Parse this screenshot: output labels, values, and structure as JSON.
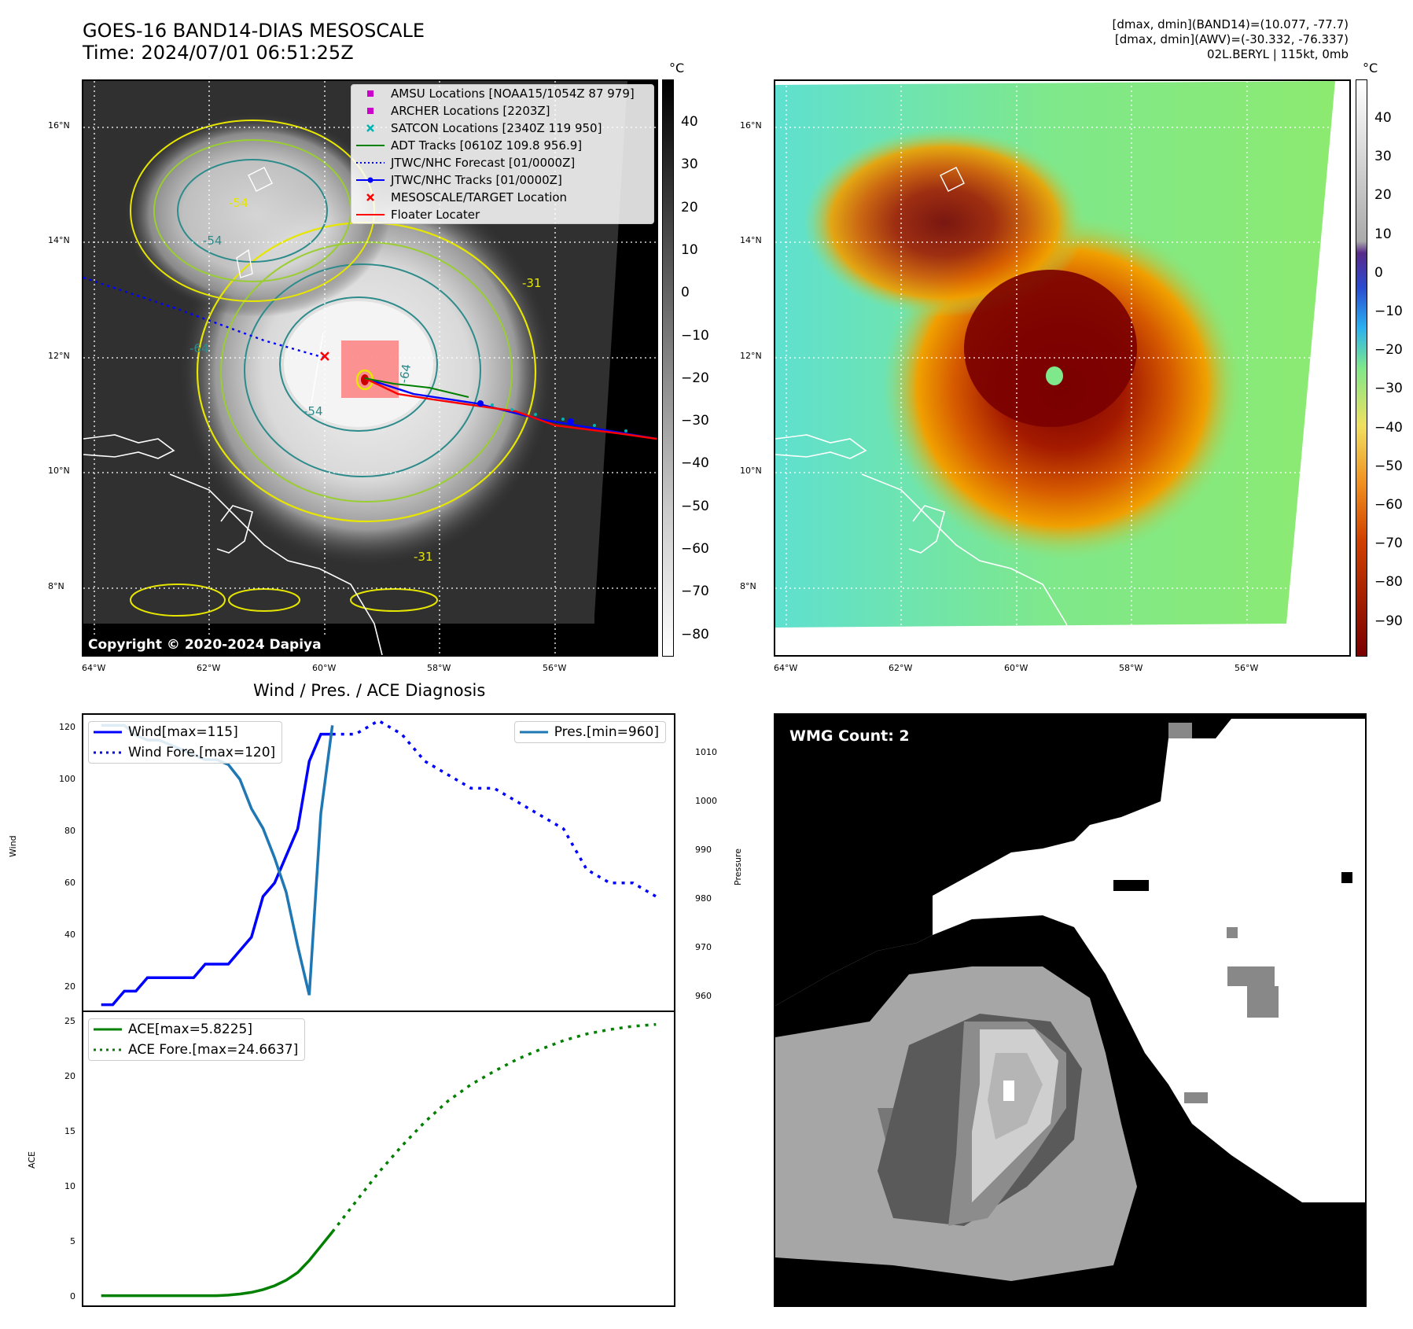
{
  "header": {
    "title_line1": "GOES-16 BAND14-DIAS MESOSCALE",
    "title_line2": "Time: 2024/07/01 06:51:25Z",
    "info_line1": "[dmax, dmin](BAND14)=(10.077, -77.7)",
    "info_line2": "[dmax, dmin](AWV)=(-30.332, -76.337)",
    "info_line3": "02L.BERYL | 115kt, 0mb"
  },
  "map": {
    "lat_ticks": [
      "16°N",
      "14°N",
      "12°N",
      "10°N",
      "8°N"
    ],
    "lon_ticks": [
      "64°W",
      "62°W",
      "60°W",
      "58°W",
      "56°W"
    ],
    "copyright": "Copyright © 2020-2024 Dapiya",
    "contour_labels": [
      "-54",
      "-54",
      "-31",
      "-64",
      "-64",
      "-54",
      "-31"
    ],
    "legend": [
      {
        "label": "AMSU Locations [NOAA15/1054Z 87 979]",
        "marker": "square",
        "color": "#cc00cc"
      },
      {
        "label": "ARCHER Locations [2203Z]",
        "marker": "square",
        "color": "#cc00cc"
      },
      {
        "label": "SATCON Locations [2340Z 119 950]",
        "marker": "x",
        "color": "#00b3b3"
      },
      {
        "label": "ADT Tracks [0610Z 109.8 956.9]",
        "marker": "line",
        "color": "#008000"
      },
      {
        "label": "JTWC/NHC Forecast [01/0000Z]",
        "marker": "dotted",
        "color": "#0000ff"
      },
      {
        "label": "JTWC/NHC Tracks [01/0000Z]",
        "marker": "line-dot",
        "color": "#0000ff"
      },
      {
        "label": "MESOSCALE/TARGET Location",
        "marker": "x",
        "color": "#ff0000"
      },
      {
        "label": "Floater Locater",
        "marker": "line",
        "color": "#ff0000"
      }
    ],
    "colorbar_left": {
      "unit": "°C",
      "ticks": [
        "40",
        "30",
        "20",
        "10",
        "0",
        "−10",
        "−20",
        "−30",
        "−40",
        "−50",
        "−60",
        "−70",
        "−80"
      ]
    },
    "colorbar_right": {
      "unit": "°C",
      "ticks": [
        "40",
        "30",
        "20",
        "10",
        "0",
        "−10",
        "−20",
        "−30",
        "−40",
        "−50",
        "−60",
        "−70",
        "−80",
        "−90"
      ]
    }
  },
  "diagnosis": {
    "title": "Wind / Pres. / ACE Diagnosis",
    "wind_ylabel": "Wind",
    "pres_ylabel": "Pressure",
    "ace_ylabel": "ACE",
    "wind_ticks": [
      "120",
      "100",
      "80",
      "60",
      "40",
      "20"
    ],
    "pres_ticks": [
      "1010",
      "1000",
      "990",
      "980",
      "970",
      "960"
    ],
    "ace_ticks": [
      "25",
      "20",
      "15",
      "10",
      "5",
      "0"
    ],
    "legend_wind": "Wind[max=115]",
    "legend_wind_fore": "Wind Fore.[max=120]",
    "legend_pres": "Pres.[min=960]",
    "legend_ace": "ACE[max=5.8225]",
    "legend_ace_fore": "ACE Fore.[max=24.6637]"
  },
  "wmg": {
    "label": "WMG Count: 2"
  },
  "chart_data": [
    {
      "type": "line",
      "name": "wind",
      "ylim": [
        14,
        121
      ],
      "series": [
        {
          "name": "Wind[max=115]",
          "color": "#0000ff",
          "style": "solid",
          "x": [
            0,
            1,
            2,
            3,
            4,
            5,
            6,
            7,
            8,
            9,
            10,
            11,
            12,
            13,
            14,
            15,
            16,
            17,
            18,
            19,
            20
          ],
          "values": [
            15,
            15,
            20,
            20,
            25,
            25,
            25,
            25,
            25,
            30,
            30,
            30,
            35,
            40,
            55,
            60,
            70,
            80,
            105,
            115,
            115
          ]
        },
        {
          "name": "Wind Fore.[max=120]",
          "color": "#0000ff",
          "style": "dotted",
          "x": [
            20,
            22,
            24,
            26,
            28,
            30,
            32,
            34,
            36,
            38,
            40,
            42,
            44,
            46,
            48
          ],
          "values": [
            115,
            115,
            120,
            115,
            105,
            100,
            95,
            95,
            90,
            85,
            80,
            65,
            60,
            60,
            55
          ]
        }
      ]
    },
    {
      "type": "line",
      "name": "pressure",
      "ylim": [
        957.5,
        1016.5
      ],
      "series": [
        {
          "name": "Pres.[min=960]",
          "color": "#1f77b4",
          "style": "solid",
          "x": [
            0,
            1,
            2,
            3,
            4,
            5,
            6,
            7,
            8,
            9,
            10,
            11,
            12,
            13,
            14,
            15,
            16,
            17,
            18,
            19,
            20
          ],
          "values": [
            1015,
            1015,
            1015,
            1013,
            1012,
            1012,
            1011,
            1010,
            1009,
            1008,
            1008,
            1007,
            1004,
            998,
            994,
            988,
            981,
            970,
            960,
            997,
            1015
          ]
        }
      ]
    },
    {
      "type": "line",
      "name": "ace",
      "ylim": [
        -0.6,
        25.5
      ],
      "series": [
        {
          "name": "ACE[max=5.8225]",
          "color": "#008000",
          "style": "solid",
          "x": [
            0,
            2,
            4,
            6,
            8,
            10,
            11,
            12,
            13,
            14,
            15,
            16,
            17,
            18,
            19,
            20
          ],
          "values": [
            0,
            0,
            0,
            0,
            0,
            0,
            0.05,
            0.15,
            0.3,
            0.55,
            0.9,
            1.4,
            2.1,
            3.2,
            4.5,
            5.8
          ]
        },
        {
          "name": "ACE Fore.[max=24.6637]",
          "color": "#008000",
          "style": "dotted",
          "x": [
            20,
            22,
            24,
            26,
            28,
            30,
            32,
            34,
            36,
            38,
            40,
            42,
            44,
            46,
            48
          ],
          "values": [
            5.8,
            8.5,
            11.2,
            13.6,
            15.8,
            17.7,
            19.2,
            20.4,
            21.5,
            22.4,
            23.2,
            23.8,
            24.2,
            24.5,
            24.66
          ]
        }
      ]
    }
  ]
}
